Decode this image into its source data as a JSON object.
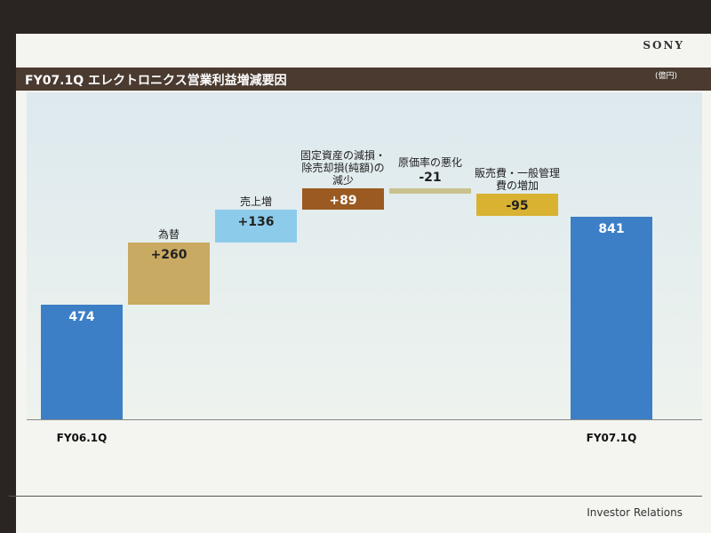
{
  "brand": "SONY",
  "footer": "Investor Relations",
  "chart_data": {
    "type": "waterfall",
    "title": "FY07.1Q エレクトロニクス営業利益増減要因",
    "unit": "(億円)",
    "categories": [
      "FY06.1Q",
      "為替",
      "売上増",
      "固定資産の減損・除売却損(純額)の減少",
      "原価率の悪化",
      "販売費・一般管理費の増加",
      "FY07.1Q"
    ],
    "values": [
      474,
      260,
      136,
      89,
      -21,
      -95,
      841
    ],
    "value_labels": [
      "474",
      "+260",
      "+136",
      "+89",
      "-21",
      "-95",
      "841"
    ],
    "colors": [
      "#3c7fc6",
      "#c9aa62",
      "#8ccbea",
      "#9a5a22",
      "#c9c28f",
      "#d9b232",
      "#3c7fc6"
    ]
  }
}
